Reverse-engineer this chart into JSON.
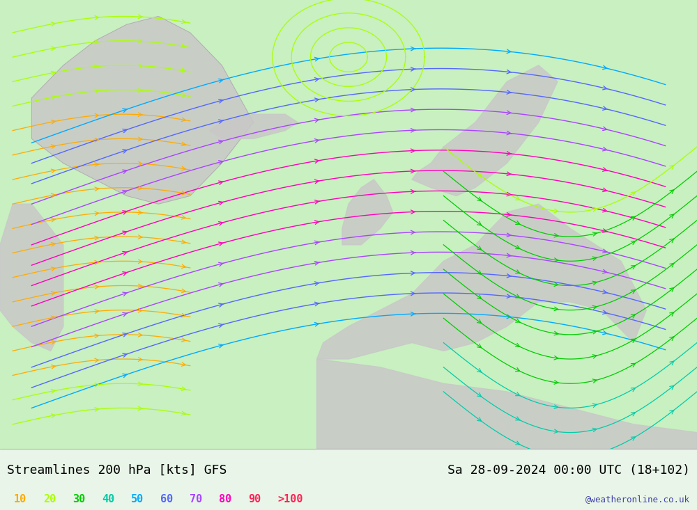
{
  "title_left": "Streamlines 200 hPa [kts] GFS",
  "title_right": "Sa 28-09-2024 00:00 UTC (18+102)",
  "watermark": "@weatheronline.co.uk",
  "legend_values": [
    10,
    20,
    30,
    40,
    50,
    60,
    70,
    80,
    90
  ],
  "legend_label_gt": ">100",
  "legend_colors": [
    "#ffaa00",
    "#aaff00",
    "#00cc00",
    "#00ccaa",
    "#00aaff",
    "#0055ff",
    "#aa00ff",
    "#ff00aa",
    "#ff0055",
    "#ff0055"
  ],
  "speed_colors": {
    "10": "#ffaa00",
    "20": "#aaff00",
    "30": "#00cc00",
    "40": "#00ccaa",
    "50": "#00aaff",
    "60": "#0055ff",
    "70": "#aa00ff",
    "80": "#ff00aa",
    "90": "#ff0055",
    "100": "#ff0055"
  },
  "background_color": "#e8f5e8",
  "land_color": "#d0d0d0",
  "sea_color": "#f0f0f0",
  "fig_width": 10.0,
  "fig_height": 7.33,
  "font_family": "monospace",
  "title_fontsize": 13,
  "legend_fontsize": 11,
  "watermark_color": "#4444aa",
  "bottom_bar_color": "#ffffff"
}
